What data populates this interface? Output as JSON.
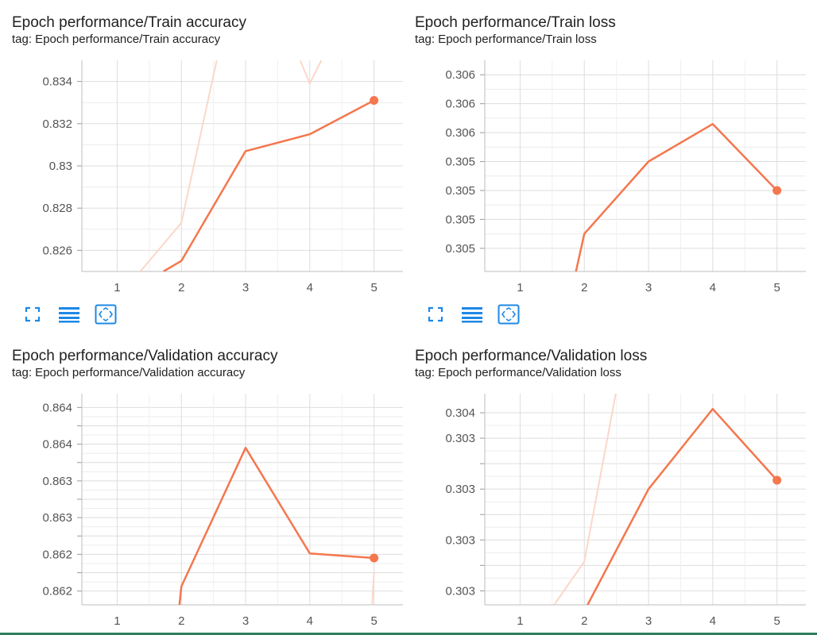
{
  "colors": {
    "smoothed_line": "#f4774e",
    "raw_line": "#fbd7ca",
    "grid": "#dddddd",
    "axis_text": "#555555",
    "icon_blue": "#1e88e5",
    "footer": "#2e7d5b"
  },
  "toolbar": {
    "icons": [
      "fullscreen-icon",
      "toggle-y-log-icon",
      "fit-domain-icon"
    ]
  },
  "chart_data": [
    {
      "type": "line",
      "title": "Epoch performance/Train accuracy",
      "tag": "tag: Epoch performance/Train accuracy",
      "xlim": [
        0.45,
        5.45
      ],
      "ylim": [
        0.825,
        0.835
      ],
      "x_ticks": [
        1,
        2,
        3,
        4,
        5
      ],
      "x_tick_labels": [
        "1",
        "2",
        "3",
        "4",
        "5"
      ],
      "y_ticks": [
        0.826,
        0.828,
        0.83,
        0.832,
        0.834
      ],
      "y_tick_labels": [
        "0.826",
        "0.828",
        "0.83",
        "0.832",
        "0.834"
      ],
      "series": [
        {
          "role": "smoothed",
          "x": [
            1.72,
            2,
            3,
            4,
            5
          ],
          "y": [
            0.825,
            0.8255,
            0.8307,
            0.8315,
            0.8331
          ]
        },
        {
          "role": "raw",
          "x": [
            1.36,
            2,
            2.55
          ],
          "y": [
            0.825,
            0.8273,
            0.835
          ]
        },
        {
          "role": "raw",
          "x": [
            3.85,
            4,
            4.18
          ],
          "y": [
            0.835,
            0.8339,
            0.835
          ]
        }
      ],
      "grid": true,
      "last_point_marker": true
    },
    {
      "type": "line",
      "title": "Epoch performance/Train loss",
      "tag": "tag: Epoch performance/Train loss",
      "xlim": [
        0.45,
        5.45
      ],
      "ylim": [
        0.30492,
        0.30565
      ],
      "x_ticks": [
        1,
        2,
        3,
        4,
        5
      ],
      "x_tick_labels": [
        "1",
        "2",
        "3",
        "4",
        "5"
      ],
      "y_ticks": [
        0.305,
        0.3051,
        0.3052,
        0.3053,
        0.3054,
        0.3055,
        0.3056
      ],
      "y_tick_labels": [
        "0.305",
        "0.305",
        "0.305",
        "0.305",
        "0.306",
        "0.306",
        "0.306"
      ],
      "series": [
        {
          "role": "smoothed",
          "x": [
            1.87,
            2,
            3,
            4,
            5
          ],
          "y": [
            0.30492,
            0.30505,
            0.3053,
            0.30543,
            0.3052
          ]
        }
      ],
      "grid": true,
      "last_point_marker": true
    },
    {
      "type": "line",
      "title": "Epoch performance/Validation accuracy",
      "tag": "tag: Epoch performance/Validation accuracy",
      "xlim": [
        0.45,
        5.45
      ],
      "ylim": [
        0.86185,
        0.86415
      ],
      "x_ticks": [
        1,
        2,
        3,
        4,
        5
      ],
      "x_tick_labels": [
        "1",
        "2",
        "3",
        "4",
        "5"
      ],
      "y_ticks": [
        0.862,
        0.8622,
        0.8624,
        0.8626,
        0.8628,
        0.863,
        0.8632,
        0.8634,
        0.8636,
        0.8638,
        0.864
      ],
      "y_tick_labels": [
        "0.862",
        "",
        "0.862",
        "",
        "0.863",
        "",
        "0.863",
        "",
        "0.864",
        "",
        "0.864"
      ],
      "series": [
        {
          "role": "smoothed",
          "x": [
            1.97,
            2,
            3,
            4,
            5
          ],
          "y": [
            0.86185,
            0.86205,
            0.86356,
            0.86241,
            0.86236
          ]
        },
        {
          "role": "raw",
          "x": [
            4.97,
            5
          ],
          "y": [
            0.86185,
            0.8622
          ]
        }
      ],
      "grid": true,
      "last_point_marker": true
    },
    {
      "type": "line",
      "title": "Epoch performance/Validation loss",
      "tag": "tag: Epoch performance/Validation loss",
      "xlim": [
        0.45,
        5.45
      ],
      "ylim": [
        0.30249,
        0.30415
      ],
      "x_ticks": [
        1,
        2,
        3,
        4,
        5
      ],
      "x_tick_labels": [
        "1",
        "2",
        "3",
        "4",
        "5"
      ],
      "y_ticks": [
        0.3026,
        0.3028,
        0.303,
        0.3032,
        0.3034,
        0.3036,
        0.3038,
        0.304
      ],
      "y_tick_labels": [
        "0.303",
        "",
        "0.303",
        "",
        "0.303",
        "",
        "0.303",
        "0.304"
      ],
      "series": [
        {
          "role": "smoothed",
          "x": [
            2.05,
            3,
            4,
            5
          ],
          "y": [
            0.30249,
            0.3034,
            0.30403,
            0.30347
          ]
        },
        {
          "role": "raw",
          "x": [
            1.53,
            2,
            2.49
          ],
          "y": [
            0.30249,
            0.30283,
            0.30415
          ]
        }
      ],
      "grid": true,
      "last_point_marker": true
    }
  ]
}
